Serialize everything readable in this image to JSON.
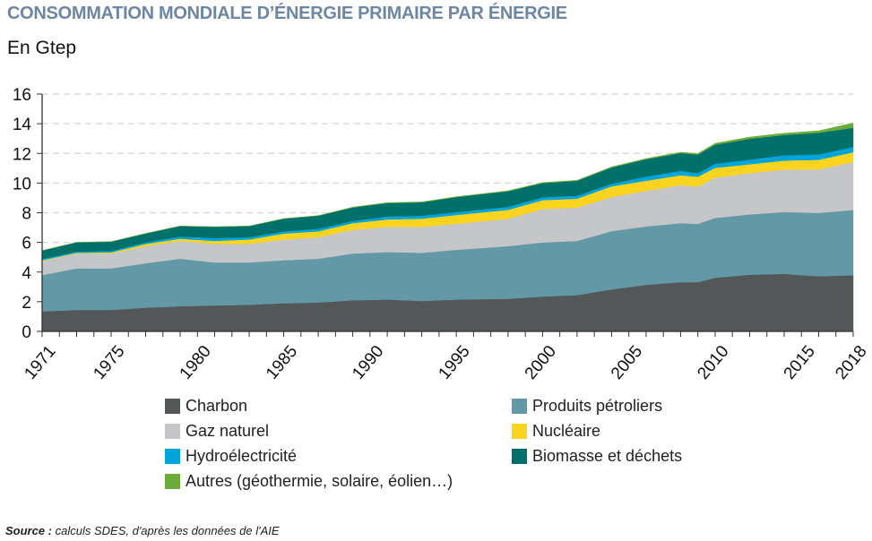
{
  "chart_data": {
    "type": "area",
    "stacked": true,
    "title": "CONSOMMATION MONDIALE D’ÉNERGIE PRIMAIRE PAR ÉNERGIE",
    "ylabel": "En Gtep",
    "xlabel": "",
    "xlim": [
      1971,
      2018
    ],
    "ylim": [
      0,
      16
    ],
    "yticks": [
      0,
      2,
      4,
      6,
      8,
      10,
      12,
      14,
      16
    ],
    "xtick_labels": [
      "1971",
      "1975",
      "1980",
      "1985",
      "1990",
      "1995",
      "2000",
      "2005",
      "2010",
      "2015",
      "2018"
    ],
    "grid": "horizontal dashed",
    "legend_position": "bottom",
    "x": [
      1971,
      1973,
      1975,
      1977,
      1979,
      1981,
      1983,
      1985,
      1987,
      1989,
      1991,
      1993,
      1995,
      1998,
      2000,
      2002,
      2004,
      2006,
      2008,
      2009,
      2010,
      2012,
      2014,
      2016,
      2018
    ],
    "series": [
      {
        "name": "Charbon",
        "color": "#535758",
        "values": [
          1.35,
          1.45,
          1.45,
          1.6,
          1.7,
          1.75,
          1.8,
          1.9,
          1.95,
          2.1,
          2.15,
          2.05,
          2.15,
          2.2,
          2.35,
          2.45,
          2.83,
          3.14,
          3.32,
          3.32,
          3.62,
          3.82,
          3.88,
          3.72,
          3.79
        ]
      },
      {
        "name": "Produits pétroliers",
        "color": "#6399a6",
        "values": [
          2.45,
          2.8,
          2.8,
          3.0,
          3.2,
          2.9,
          2.85,
          2.9,
          2.95,
          3.15,
          3.2,
          3.25,
          3.35,
          3.55,
          3.65,
          3.65,
          3.93,
          3.94,
          3.98,
          3.93,
          4.03,
          4.07,
          4.17,
          4.27,
          4.4
        ]
      },
      {
        "name": "Gaz naturel",
        "color": "#c5c6c9",
        "values": [
          0.95,
          1.0,
          1.0,
          1.15,
          1.2,
          1.25,
          1.25,
          1.4,
          1.45,
          1.6,
          1.7,
          1.75,
          1.75,
          1.85,
          2.25,
          2.25,
          2.3,
          2.4,
          2.56,
          2.51,
          2.72,
          2.78,
          2.86,
          2.94,
          3.22
        ]
      },
      {
        "name": "Nucléaire",
        "color": "#fad41e",
        "values": [
          0.05,
          0.05,
          0.08,
          0.15,
          0.15,
          0.2,
          0.3,
          0.4,
          0.4,
          0.45,
          0.5,
          0.55,
          0.6,
          0.6,
          0.6,
          0.6,
          0.72,
          0.68,
          0.67,
          0.67,
          0.66,
          0.6,
          0.61,
          0.64,
          0.67
        ]
      },
      {
        "name": "Hydroélectricité",
        "color": "#00a3da",
        "values": [
          0.08,
          0.08,
          0.1,
          0.1,
          0.15,
          0.2,
          0.15,
          0.15,
          0.17,
          0.15,
          0.2,
          0.2,
          0.2,
          0.2,
          0.2,
          0.2,
          0.18,
          0.28,
          0.3,
          0.24,
          0.28,
          0.31,
          0.36,
          0.37,
          0.36
        ]
      },
      {
        "name": "Biomasse et déchets",
        "color": "#00706a",
        "values": [
          0.57,
          0.62,
          0.62,
          0.6,
          0.7,
          0.75,
          0.75,
          0.85,
          0.88,
          0.9,
          0.9,
          0.9,
          1.0,
          1.05,
          0.95,
          1.0,
          1.09,
          1.16,
          1.19,
          1.25,
          1.27,
          1.4,
          1.36,
          1.45,
          1.29
        ]
      },
      {
        "name": "Autres (géothermie, solaire, éolien…)",
        "color": "#6aab3a",
        "values": [
          0,
          0,
          0,
          0,
          0,
          0,
          0,
          0,
          0,
          0.03,
          0.03,
          0.03,
          0.03,
          0.03,
          0.03,
          0.04,
          0.04,
          0.05,
          0.06,
          0.07,
          0.1,
          0.12,
          0.12,
          0.13,
          0.32
        ]
      }
    ]
  },
  "source": {
    "label": "Source :",
    "text": " calculs SDES, d'après les données de l'AIE"
  }
}
